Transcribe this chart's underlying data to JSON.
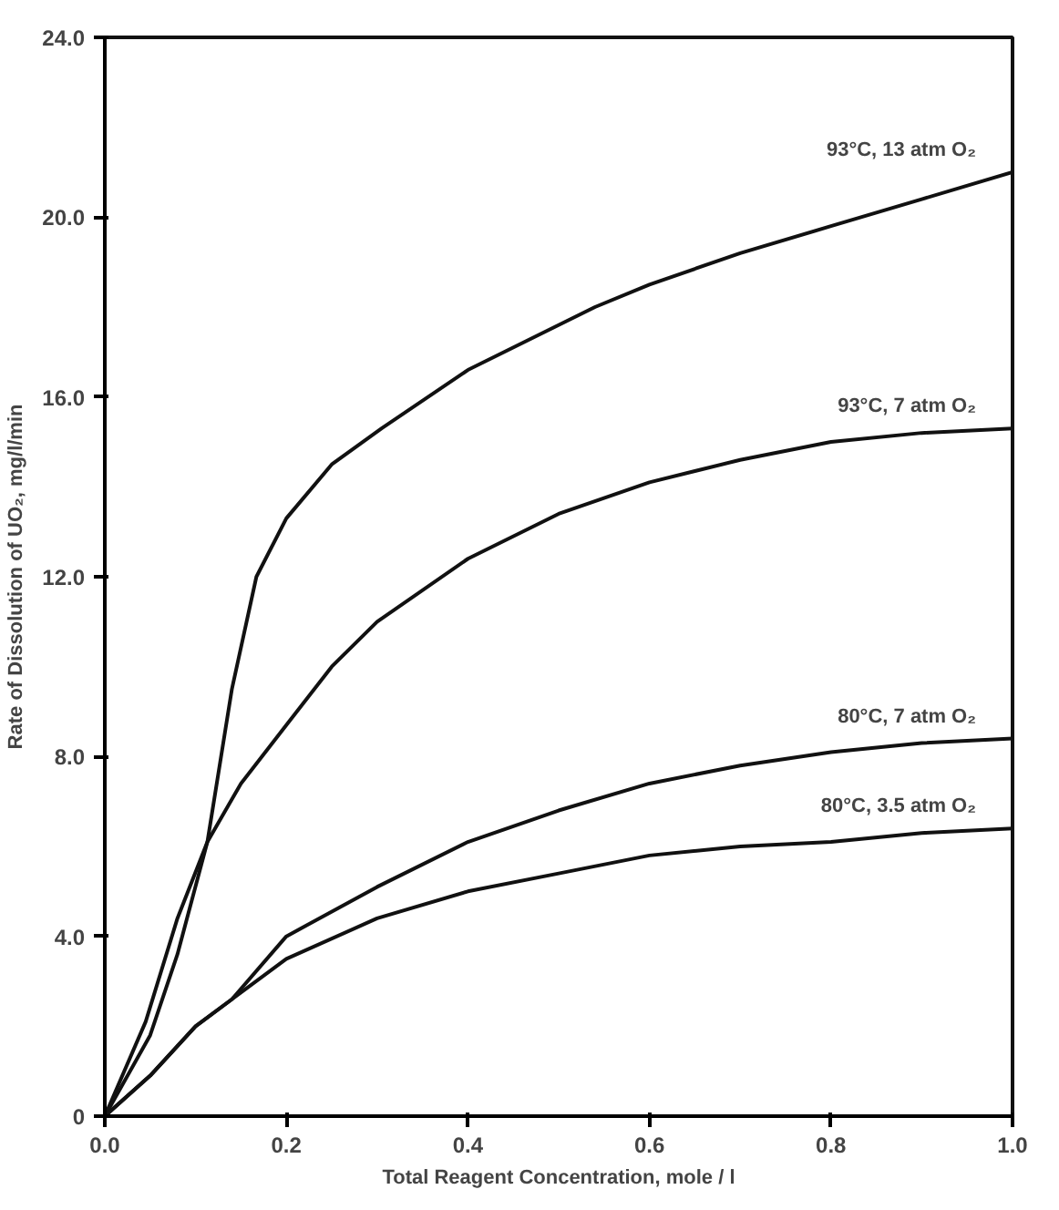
{
  "chart_data": {
    "type": "line",
    "xlabel": "Total Reagent Concentration, mole / l",
    "ylabel": "Rate of Dissolution of UO₂, mg/l/min",
    "xlim": [
      0,
      1.0
    ],
    "ylim": [
      0,
      24
    ],
    "xticks": [
      {
        "value": 0,
        "label": "0.0"
      },
      0.2,
      0.4,
      0.6,
      0.8,
      {
        "value": 1.0,
        "label": "1.0"
      }
    ],
    "yticks": [
      0,
      {
        "value": 4,
        "label": "4.0"
      },
      {
        "value": 8,
        "label": "8.0"
      },
      {
        "value": 12,
        "label": "12.0"
      },
      {
        "value": 16,
        "label": "16.0"
      },
      {
        "value": 20,
        "label": "20.0"
      },
      {
        "value": 24,
        "label": "24.0"
      }
    ],
    "grid": false,
    "legend": false,
    "marker": "none",
    "line_style": "solid",
    "series": [
      {
        "name": "93°C, 13 atm O₂",
        "color": "#111111",
        "x": [
          0,
          0.045,
          0.08,
          0.113,
          0.14,
          0.167,
          0.2,
          0.25,
          0.305,
          0.4,
          0.54,
          0.6,
          0.7,
          0.8,
          0.9,
          1.0
        ],
        "values": [
          0,
          2.1,
          4.4,
          6.1,
          9.5,
          12.0,
          13.3,
          14.5,
          15.3,
          16.6,
          18.0,
          18.5,
          19.2,
          19.8,
          20.4,
          21.0
        ]
      },
      {
        "name": "93°C, 7 atm O₂",
        "color": "#111111",
        "x": [
          0,
          0.05,
          0.08,
          0.113,
          0.15,
          0.2,
          0.25,
          0.3,
          0.4,
          0.5,
          0.6,
          0.7,
          0.8,
          0.9,
          1.0
        ],
        "values": [
          0,
          1.8,
          3.6,
          6.1,
          7.4,
          8.7,
          10.0,
          11.0,
          12.4,
          13.4,
          14.1,
          14.6,
          15.0,
          15.2,
          15.3
        ]
      },
      {
        "name": "80°C, 7 atm O₂",
        "color": "#111111",
        "x": [
          0,
          0.05,
          0.1,
          0.14,
          0.2,
          0.3,
          0.4,
          0.5,
          0.6,
          0.7,
          0.8,
          0.9,
          1.0
        ],
        "values": [
          0,
          0.9,
          2.0,
          2.6,
          4.0,
          5.1,
          6.1,
          6.8,
          7.4,
          7.8,
          8.1,
          8.3,
          8.4
        ]
      },
      {
        "name": "80°C, 3.5 atm O₂",
        "color": "#111111",
        "x": [
          0,
          0.05,
          0.1,
          0.14,
          0.2,
          0.3,
          0.4,
          0.5,
          0.6,
          0.7,
          0.8,
          0.9,
          1.0
        ],
        "values": [
          0,
          0.9,
          2.0,
          2.6,
          3.5,
          4.4,
          5.0,
          5.4,
          5.8,
          6.0,
          6.1,
          6.3,
          6.4
        ]
      }
    ]
  }
}
